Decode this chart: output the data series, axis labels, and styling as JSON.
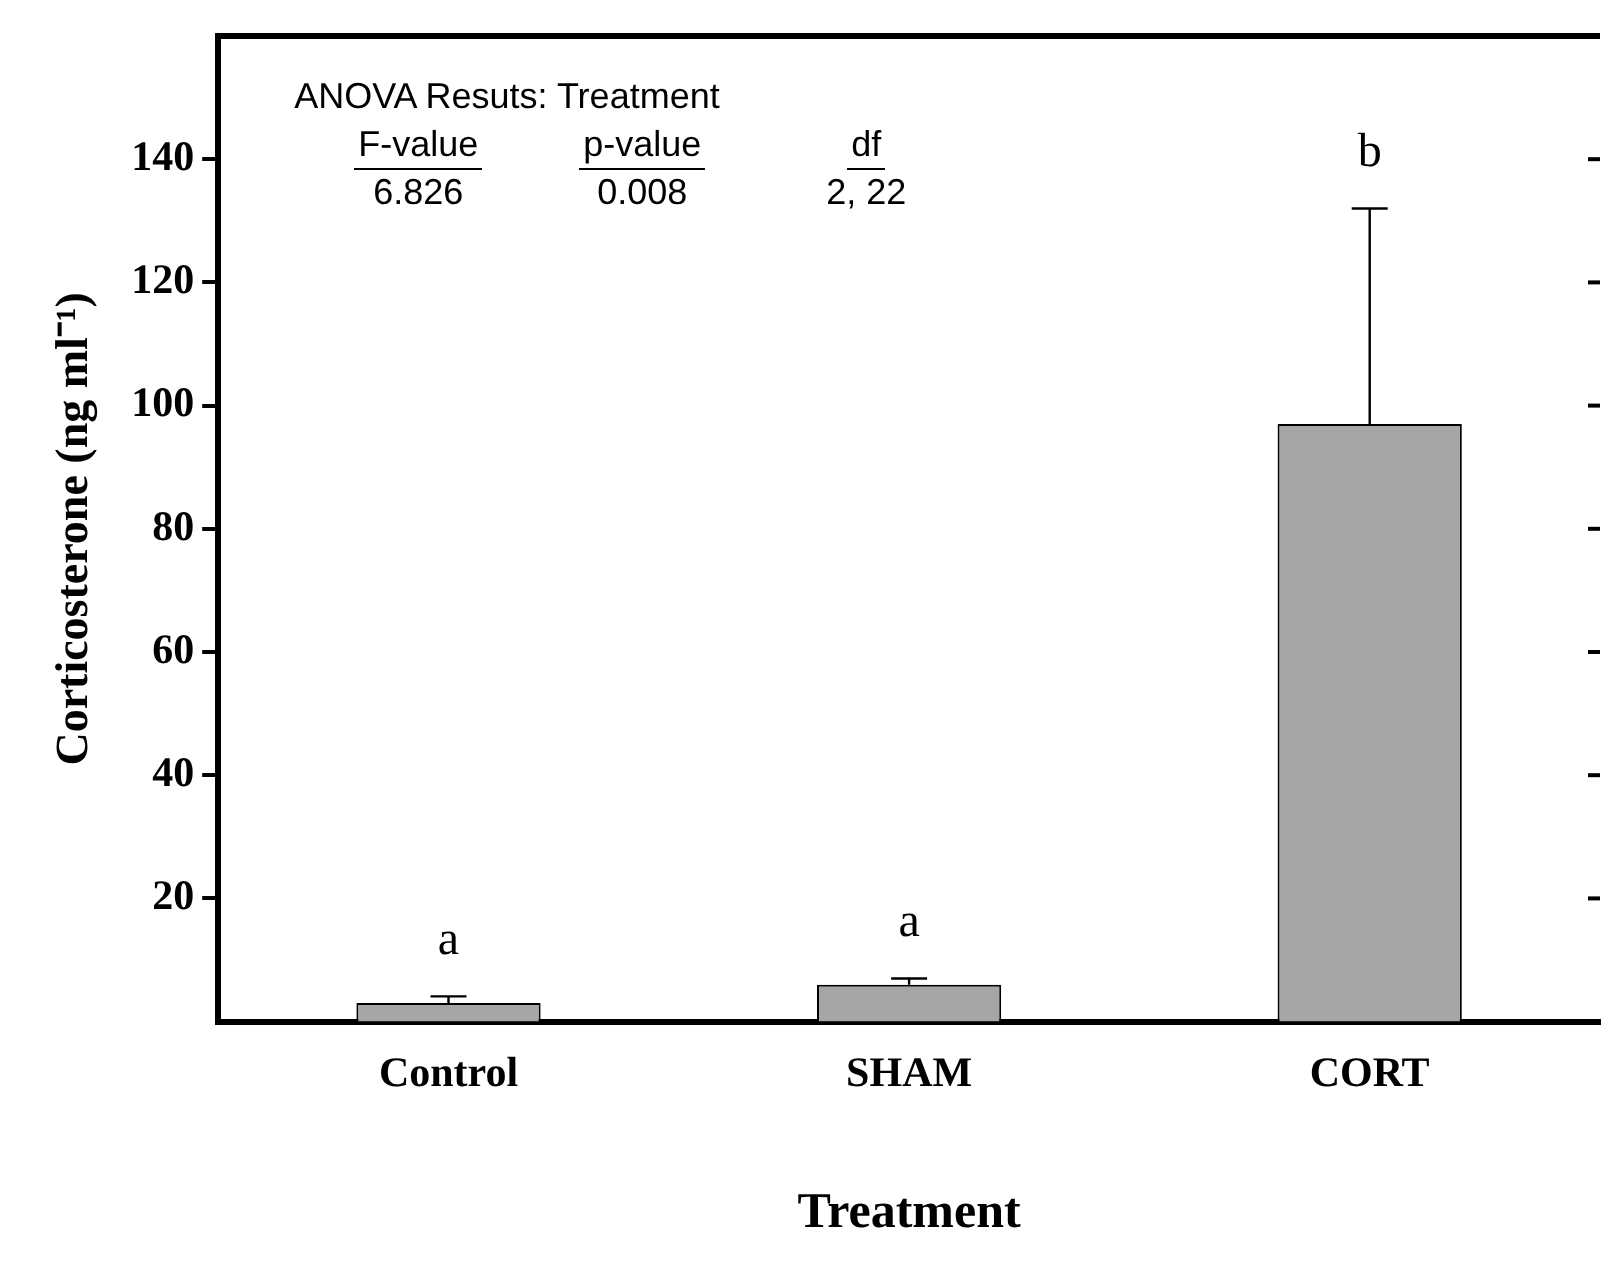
{
  "chart_data": {
    "type": "bar",
    "xlabel": "Treatment",
    "ylabel": "Corticosterone (ng ml⁻¹)",
    "categories": [
      "Control",
      "SHAM",
      "CORT"
    ],
    "values": [
      3,
      6,
      97
    ],
    "errors": [
      1.1,
      1,
      35
    ],
    "color": "#a6a6a6",
    "ylim": [
      0,
      160
    ],
    "yticks": [
      20,
      40,
      60,
      80,
      100,
      120,
      140
    ],
    "grid": false,
    "legend": false,
    "annotations": [
      "ANOVA Resuts:  Treatment",
      "F-value",
      "p-value",
      "df",
      "6.826",
      "0.008",
      "2, 22",
      "a",
      "a",
      "b"
    ]
  }
}
